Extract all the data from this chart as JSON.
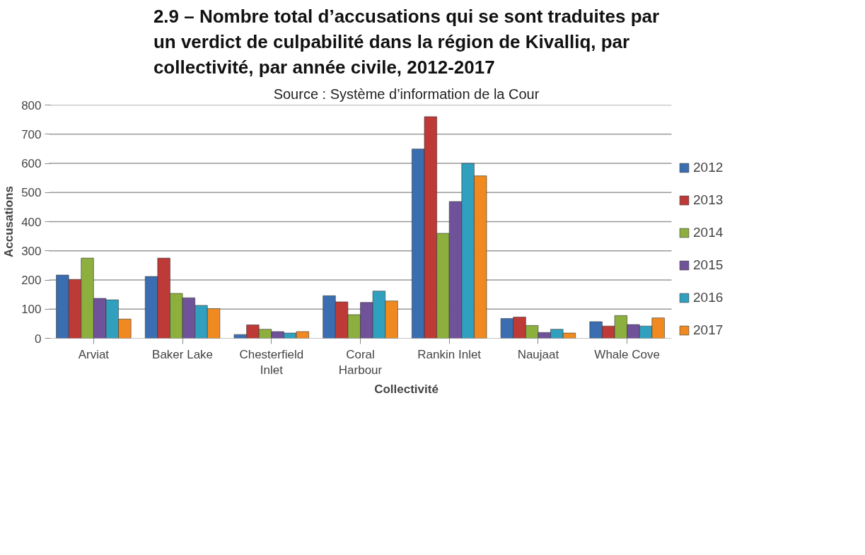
{
  "chart_data": {
    "type": "bar",
    "title": "2.9 – Nombre total d’accusations qui se sont traduites par un verdict de culpabilité dans la région de Kivalliq, par collectivité, par année civile, 2012-2017",
    "subtitle": "Source : Système d’information de la Cour",
    "xlabel": "Collectivité",
    "ylabel": "Accusations",
    "categories": [
      "Arviat",
      "Baker Lake",
      "Chesterfield Inlet",
      "Coral Harbour",
      "Rankin Inlet",
      "Naujaat",
      "Whale Cove"
    ],
    "series": [
      {
        "name": "2012",
        "color": "#3a6eb0",
        "values": [
          217,
          212,
          13,
          146,
          649,
          68,
          57
        ]
      },
      {
        "name": "2013",
        "color": "#be3a36",
        "values": [
          202,
          275,
          46,
          125,
          760,
          73,
          42
        ]
      },
      {
        "name": "2014",
        "color": "#8caf3e",
        "values": [
          275,
          154,
          31,
          81,
          360,
          44,
          78
        ]
      },
      {
        "name": "2015",
        "color": "#70529a",
        "values": [
          137,
          139,
          23,
          123,
          469,
          20,
          47
        ]
      },
      {
        "name": "2016",
        "color": "#31a0be",
        "values": [
          132,
          113,
          18,
          162,
          600,
          31,
          42
        ]
      },
      {
        "name": "2017",
        "color": "#f08a20",
        "values": [
          66,
          102,
          23,
          128,
          557,
          18,
          70
        ]
      }
    ],
    "ylim": [
      0,
      800
    ],
    "yticks": [
      0,
      100,
      200,
      300,
      400,
      500,
      600,
      700,
      800
    ],
    "grid": "y",
    "legend": "right"
  }
}
